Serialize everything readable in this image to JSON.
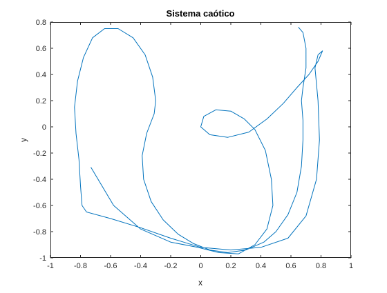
{
  "chart_data": {
    "type": "line",
    "title": "Sistema caótico",
    "xlabel": "x",
    "ylabel": "y",
    "xlim": [
      -1,
      1
    ],
    "ylim": [
      -1,
      0.8
    ],
    "xticks": [
      -1,
      -0.8,
      -0.6,
      -0.4,
      -0.2,
      0,
      0.2,
      0.4,
      0.6,
      0.8,
      1
    ],
    "xtick_labels": [
      "-1",
      "-0.8",
      "-0.6",
      "-0.4",
      "-0.2",
      "0",
      "0.2",
      "0.4",
      "0.6",
      "0.8",
      "1"
    ],
    "yticks": [
      -1,
      -0.8,
      -0.6,
      -0.4,
      -0.2,
      0,
      0.2,
      0.4,
      0.6,
      0.8
    ],
    "ytick_labels": [
      "-1",
      "-0.8",
      "-0.6",
      "-0.4",
      "-0.2",
      "0",
      "0.2",
      "0.4",
      "0.6",
      "0.8"
    ],
    "grid": false,
    "series": [
      {
        "color": "#0072BD",
        "points": [
          [
            0.65,
            0.76
          ],
          [
            0.68,
            0.72
          ],
          [
            0.7,
            0.6
          ],
          [
            0.7,
            0.45
          ],
          [
            0.68,
            0.3
          ],
          [
            0.67,
            0.2
          ],
          [
            0.68,
            0.05
          ],
          [
            0.68,
            -0.1
          ],
          [
            0.67,
            -0.3
          ],
          [
            0.64,
            -0.5
          ],
          [
            0.58,
            -0.67
          ],
          [
            0.5,
            -0.8
          ],
          [
            0.42,
            -0.88
          ],
          [
            0.3,
            -0.94
          ],
          [
            0.18,
            -0.96
          ],
          [
            0.06,
            -0.94
          ],
          [
            -0.05,
            -0.89
          ],
          [
            -0.15,
            -0.82
          ],
          [
            -0.25,
            -0.71
          ],
          [
            -0.33,
            -0.57
          ],
          [
            -0.38,
            -0.4
          ],
          [
            -0.39,
            -0.22
          ],
          [
            -0.36,
            -0.05
          ],
          [
            -0.31,
            0.1
          ],
          [
            -0.3,
            0.2
          ],
          [
            -0.32,
            0.38
          ],
          [
            -0.37,
            0.55
          ],
          [
            -0.45,
            0.68
          ],
          [
            -0.55,
            0.75
          ],
          [
            -0.64,
            0.75
          ],
          [
            -0.72,
            0.68
          ],
          [
            -0.78,
            0.53
          ],
          [
            -0.82,
            0.35
          ],
          [
            -0.84,
            0.15
          ],
          [
            -0.83,
            -0.05
          ],
          [
            -0.81,
            -0.25
          ],
          [
            -0.8,
            -0.45
          ],
          [
            -0.79,
            -0.6
          ],
          [
            -0.76,
            -0.65
          ],
          [
            -0.6,
            -0.7
          ],
          [
            -0.4,
            -0.77
          ],
          [
            -0.2,
            -0.85
          ],
          [
            0.0,
            -0.92
          ],
          [
            0.2,
            -0.94
          ],
          [
            0.4,
            -0.92
          ],
          [
            0.58,
            -0.85
          ],
          [
            0.7,
            -0.68
          ],
          [
            0.77,
            -0.4
          ],
          [
            0.79,
            -0.1
          ],
          [
            0.78,
            0.2
          ],
          [
            0.76,
            0.45
          ],
          [
            0.78,
            0.55
          ],
          [
            0.81,
            0.58
          ],
          [
            0.78,
            0.5
          ],
          [
            0.72,
            0.4
          ],
          [
            0.64,
            0.3
          ],
          [
            0.55,
            0.18
          ],
          [
            0.44,
            0.06
          ],
          [
            0.32,
            -0.04
          ],
          [
            0.18,
            -0.08
          ],
          [
            0.06,
            -0.06
          ],
          [
            0.0,
            0.0
          ],
          [
            0.02,
            0.08
          ],
          [
            0.1,
            0.13
          ],
          [
            0.2,
            0.12
          ],
          [
            0.29,
            0.06
          ],
          [
            0.36,
            -0.02
          ],
          [
            0.43,
            -0.18
          ],
          [
            0.47,
            -0.4
          ],
          [
            0.48,
            -0.6
          ],
          [
            0.44,
            -0.78
          ],
          [
            0.36,
            -0.9
          ],
          [
            0.25,
            -0.97
          ],
          [
            0.12,
            -0.96
          ],
          [
            -0.02,
            -0.92
          ],
          [
            -0.2,
            -0.88
          ],
          [
            -0.4,
            -0.78
          ],
          [
            -0.58,
            -0.6
          ],
          [
            -0.73,
            -0.31
          ]
        ]
      }
    ]
  }
}
